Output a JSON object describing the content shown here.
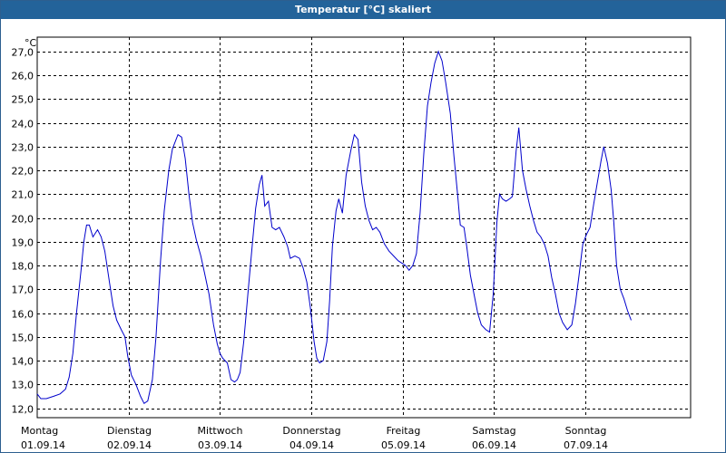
{
  "window": {
    "title": "Temperatur [°C] skaliert"
  },
  "colors": {
    "titlebar": "#23639a",
    "series": "#0000cc",
    "grid": "#000000"
  },
  "chart_data": {
    "type": "line",
    "title": "Temperatur [°C] skaliert",
    "ylabel": "°C",
    "ylim": [
      11.6,
      27.6
    ],
    "yticks": [
      "12,0",
      "13,0",
      "14,0",
      "15,0",
      "16,0",
      "17,0",
      "18,0",
      "19,0",
      "20,0",
      "21,0",
      "22,0",
      "23,0",
      "24,0",
      "25,0",
      "26,0",
      "27,0"
    ],
    "grid": true,
    "x_day_range": [
      0,
      7.15
    ],
    "days": [
      {
        "weekday": "Montag",
        "date": "01.09.14"
      },
      {
        "weekday": "Dienstag",
        "date": "02.09.14"
      },
      {
        "weekday": "Mittwoch",
        "date": "03.09.14"
      },
      {
        "weekday": "Donnerstag",
        "date": "04.09.14"
      },
      {
        "weekday": "Freitag",
        "date": "05.09.14"
      },
      {
        "weekday": "Samstag",
        "date": "06.09.14"
      },
      {
        "weekday": "Sonntag",
        "date": "07.09.14"
      }
    ],
    "series": [
      {
        "values": [
          [
            0.0,
            12.6
          ],
          [
            0.04,
            12.4
          ],
          [
            0.1,
            12.4
          ],
          [
            0.18,
            12.5
          ],
          [
            0.25,
            12.6
          ],
          [
            0.31,
            12.8
          ],
          [
            0.35,
            13.3
          ],
          [
            0.39,
            14.3
          ],
          [
            0.43,
            16.0
          ],
          [
            0.48,
            17.8
          ],
          [
            0.51,
            19.0
          ],
          [
            0.54,
            19.7
          ],
          [
            0.57,
            19.7
          ],
          [
            0.61,
            19.2
          ],
          [
            0.66,
            19.5
          ],
          [
            0.7,
            19.2
          ],
          [
            0.74,
            18.6
          ],
          [
            0.79,
            17.3
          ],
          [
            0.83,
            16.3
          ],
          [
            0.87,
            15.7
          ],
          [
            0.92,
            15.3
          ],
          [
            0.96,
            15.0
          ],
          [
            0.99,
            14.2
          ],
          [
            1.03,
            13.4
          ],
          [
            1.08,
            13.0
          ],
          [
            1.13,
            12.5
          ],
          [
            1.17,
            12.2
          ],
          [
            1.21,
            12.3
          ],
          [
            1.26,
            13.2
          ],
          [
            1.3,
            15.0
          ],
          [
            1.35,
            18.2
          ],
          [
            1.39,
            20.3
          ],
          [
            1.44,
            22.0
          ],
          [
            1.48,
            22.9
          ],
          [
            1.54,
            23.5
          ],
          [
            1.58,
            23.4
          ],
          [
            1.62,
            22.5
          ],
          [
            1.66,
            21.0
          ],
          [
            1.7,
            19.8
          ],
          [
            1.74,
            19.1
          ],
          [
            1.79,
            18.4
          ],
          [
            1.83,
            17.7
          ],
          [
            1.88,
            16.8
          ],
          [
            1.93,
            15.5
          ],
          [
            1.97,
            14.7
          ],
          [
            2.0,
            14.3
          ],
          [
            2.03,
            14.1
          ],
          [
            2.08,
            13.9
          ],
          [
            2.12,
            13.2
          ],
          [
            2.16,
            13.1
          ],
          [
            2.19,
            13.2
          ],
          [
            2.22,
            13.5
          ],
          [
            2.26,
            14.8
          ],
          [
            2.31,
            17.0
          ],
          [
            2.35,
            18.7
          ],
          [
            2.39,
            20.4
          ],
          [
            2.43,
            21.4
          ],
          [
            2.46,
            21.8
          ],
          [
            2.49,
            20.5
          ],
          [
            2.53,
            20.7
          ],
          [
            2.57,
            19.6
          ],
          [
            2.61,
            19.5
          ],
          [
            2.65,
            19.6
          ],
          [
            2.7,
            19.2
          ],
          [
            2.74,
            18.8
          ],
          [
            2.77,
            18.3
          ],
          [
            2.82,
            18.4
          ],
          [
            2.87,
            18.3
          ],
          [
            2.91,
            17.9
          ],
          [
            2.95,
            17.3
          ],
          [
            2.99,
            16.2
          ],
          [
            3.03,
            14.8
          ],
          [
            3.06,
            14.1
          ],
          [
            3.09,
            13.9
          ],
          [
            3.13,
            14.0
          ],
          [
            3.17,
            14.8
          ],
          [
            3.2,
            16.5
          ],
          [
            3.23,
            18.8
          ],
          [
            3.27,
            20.3
          ],
          [
            3.3,
            20.8
          ],
          [
            3.34,
            20.2
          ],
          [
            3.38,
            21.8
          ],
          [
            3.43,
            22.8
          ],
          [
            3.47,
            23.5
          ],
          [
            3.51,
            23.3
          ],
          [
            3.55,
            21.5
          ],
          [
            3.59,
            20.5
          ],
          [
            3.63,
            19.9
          ],
          [
            3.67,
            19.5
          ],
          [
            3.71,
            19.6
          ],
          [
            3.75,
            19.4
          ],
          [
            3.8,
            18.9
          ],
          [
            3.85,
            18.6
          ],
          [
            3.9,
            18.4
          ],
          [
            3.95,
            18.2
          ],
          [
            3.99,
            18.1
          ],
          [
            4.03,
            18.0
          ],
          [
            4.07,
            17.8
          ],
          [
            4.11,
            18.0
          ],
          [
            4.15,
            18.5
          ],
          [
            4.19,
            20.2
          ],
          [
            4.23,
            22.7
          ],
          [
            4.27,
            24.7
          ],
          [
            4.31,
            25.7
          ],
          [
            4.35,
            26.5
          ],
          [
            4.39,
            27.0
          ],
          [
            4.43,
            26.6
          ],
          [
            4.47,
            25.7
          ],
          [
            4.52,
            24.4
          ],
          [
            4.56,
            22.6
          ],
          [
            4.6,
            21.0
          ],
          [
            4.63,
            19.7
          ],
          [
            4.67,
            19.6
          ],
          [
            4.7,
            18.8
          ],
          [
            4.74,
            17.6
          ],
          [
            4.78,
            16.8
          ],
          [
            4.82,
            16.0
          ],
          [
            4.86,
            15.5
          ],
          [
            4.91,
            15.3
          ],
          [
            4.95,
            15.2
          ],
          [
            4.99,
            16.8
          ],
          [
            5.03,
            19.8
          ],
          [
            5.06,
            21.0
          ],
          [
            5.09,
            20.8
          ],
          [
            5.13,
            20.7
          ],
          [
            5.17,
            20.8
          ],
          [
            5.2,
            20.9
          ],
          [
            5.24,
            22.8
          ],
          [
            5.27,
            23.8
          ],
          [
            5.31,
            22.0
          ],
          [
            5.35,
            21.2
          ],
          [
            5.39,
            20.5
          ],
          [
            5.43,
            19.9
          ],
          [
            5.47,
            19.4
          ],
          [
            5.51,
            19.2
          ],
          [
            5.55,
            18.9
          ],
          [
            5.59,
            18.4
          ],
          [
            5.63,
            17.5
          ],
          [
            5.67,
            16.8
          ],
          [
            5.71,
            16.0
          ],
          [
            5.75,
            15.6
          ],
          [
            5.8,
            15.3
          ],
          [
            5.85,
            15.5
          ],
          [
            5.89,
            16.4
          ],
          [
            5.93,
            17.6
          ],
          [
            5.97,
            18.9
          ],
          [
            6.01,
            19.3
          ],
          [
            6.05,
            19.6
          ],
          [
            6.09,
            20.6
          ],
          [
            6.13,
            21.5
          ],
          [
            6.17,
            22.4
          ],
          [
            6.2,
            23.0
          ],
          [
            6.24,
            22.3
          ],
          [
            6.28,
            21.2
          ],
          [
            6.31,
            19.8
          ],
          [
            6.34,
            18.0
          ],
          [
            6.38,
            17.0
          ],
          [
            6.42,
            16.6
          ],
          [
            6.46,
            16.1
          ],
          [
            6.5,
            15.7
          ]
        ]
      }
    ]
  }
}
